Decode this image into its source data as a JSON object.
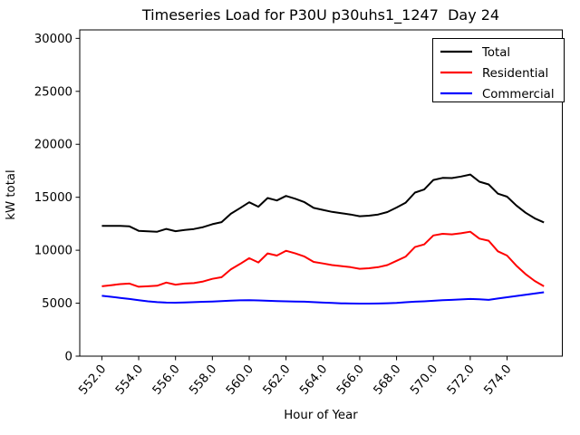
{
  "figure": {
    "background_color": "#ffffff",
    "frame_color": "#000000"
  },
  "chart_data": {
    "type": "line",
    "title": "Timeseries Load for P30U p30uhs1_1247  Day 24",
    "xlabel": "Hour of Year",
    "ylabel": "kW total",
    "xlim": [
      550.8,
      577.0
    ],
    "ylim": [
      0,
      30800
    ],
    "grid": false,
    "legend_position": "upper right",
    "xticks": [
      552.0,
      554.0,
      556.0,
      558.0,
      560.0,
      562.0,
      564.0,
      566.0,
      568.0,
      570.0,
      572.0,
      574.0
    ],
    "xtick_labels": [
      "552.0",
      "554.0",
      "556.0",
      "558.0",
      "560.0",
      "562.0",
      "564.0",
      "566.0",
      "568.0",
      "570.0",
      "572.0",
      "574.0"
    ],
    "yticks": [
      0,
      5000,
      10000,
      15000,
      20000,
      25000,
      30000
    ],
    "ytick_labels": [
      "0",
      "5000",
      "10000",
      "15000",
      "20000",
      "25000",
      "30000"
    ],
    "x": [
      552.0,
      552.5,
      553.0,
      553.5,
      554.0,
      554.5,
      555.0,
      555.5,
      556.0,
      556.5,
      557.0,
      557.5,
      558.0,
      558.5,
      559.0,
      559.5,
      560.0,
      560.5,
      561.0,
      561.5,
      562.0,
      562.5,
      563.0,
      563.5,
      564.0,
      564.5,
      565.0,
      565.5,
      566.0,
      566.5,
      567.0,
      567.5,
      568.0,
      568.5,
      569.0,
      569.5,
      570.0,
      570.5,
      571.0,
      571.5,
      572.0,
      572.5,
      573.0,
      573.5,
      574.0,
      574.5,
      575.0,
      575.5,
      576.0
    ],
    "series": [
      {
        "name": "Total",
        "color": "#000000",
        "values": [
          12300,
          12300,
          12300,
          12250,
          11830,
          11780,
          11750,
          12010,
          11800,
          11920,
          12000,
          12180,
          12460,
          12650,
          13440,
          13970,
          14530,
          14110,
          14930,
          14700,
          15130,
          14860,
          14540,
          14000,
          13810,
          13620,
          13490,
          13370,
          13210,
          13260,
          13370,
          13600,
          14030,
          14490,
          15440,
          15730,
          16630,
          16830,
          16810,
          16960,
          17145,
          16470,
          16210,
          15340,
          15060,
          14230,
          13540,
          13010,
          12630
        ]
      },
      {
        "name": "Residential",
        "color": "#ff0000",
        "values": [
          6600,
          6700,
          6800,
          6850,
          6550,
          6600,
          6650,
          6950,
          6750,
          6850,
          6900,
          7050,
          7300,
          7450,
          8200,
          8700,
          9250,
          8850,
          9700,
          9500,
          9950,
          9700,
          9400,
          8900,
          8750,
          8600,
          8500,
          8400,
          8250,
          8300,
          8400,
          8600,
          9000,
          9400,
          10300,
          10550,
          11400,
          11550,
          11500,
          11600,
          11750,
          11100,
          10900,
          9900,
          9500,
          8550,
          7750,
          7100,
          6600
        ]
      },
      {
        "name": "Commercial",
        "color": "#0000ff",
        "values": [
          5700,
          5600,
          5500,
          5400,
          5280,
          5180,
          5100,
          5060,
          5050,
          5070,
          5100,
          5130,
          5160,
          5200,
          5240,
          5270,
          5280,
          5260,
          5230,
          5200,
          5180,
          5160,
          5140,
          5100,
          5060,
          5020,
          4990,
          4970,
          4960,
          4960,
          4970,
          5000,
          5030,
          5090,
          5140,
          5180,
          5230,
          5280,
          5310,
          5360,
          5395,
          5370,
          5310,
          5440,
          5560,
          5680,
          5790,
          5910,
          6030
        ]
      }
    ]
  }
}
